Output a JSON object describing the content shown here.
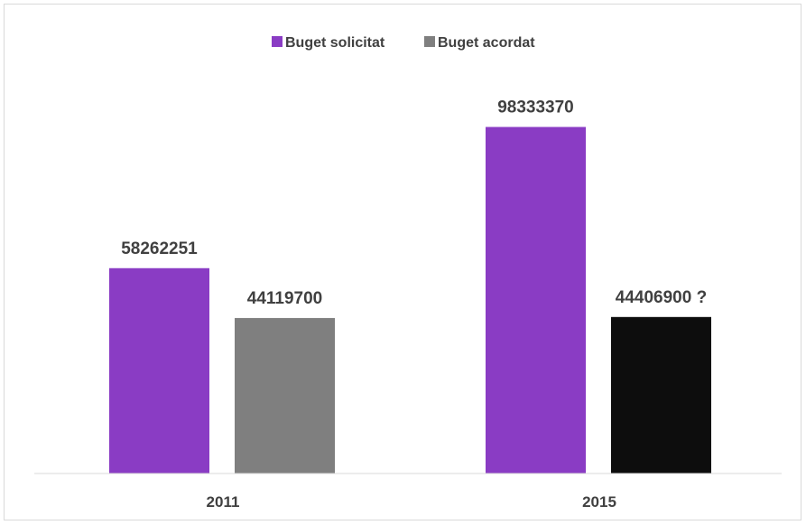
{
  "chart_data": {
    "type": "bar",
    "categories": [
      "2011",
      "2015"
    ],
    "series": [
      {
        "name": "Buget solicitat",
        "values": [
          58262251,
          98333370
        ],
        "labels": [
          "58262251",
          "98333370"
        ]
      },
      {
        "name": "Buget acordat",
        "values": [
          44119700,
          44406900
        ],
        "labels": [
          "44119700",
          "44406900 ?"
        ]
      }
    ],
    "colors": {
      "solicitat": "#8a3cc4",
      "acordat": "#7f7f7f",
      "acordat_2015": "#0d0d0d"
    },
    "legend": "top-center",
    "grid": false,
    "ylim": [
      0,
      120000000
    ]
  }
}
